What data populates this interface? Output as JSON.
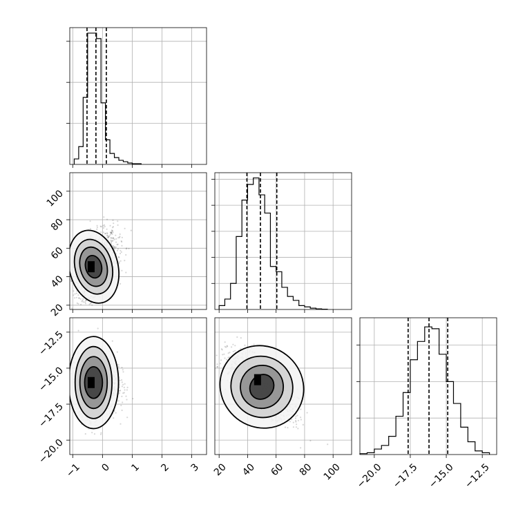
{
  "chart_data": {
    "type": "corner",
    "parameters": [
      {
        "ticks": [
          -1,
          0,
          1,
          2,
          3
        ],
        "tick_labels": [
          "−1",
          "0",
          "1",
          "2",
          "3"
        ],
        "range": [
          -1.1,
          3.5
        ],
        "quantiles": [
          -0.52,
          -0.22,
          0.13
        ],
        "hist": {
          "edges": [
            -0.95,
            -0.8,
            -0.65,
            -0.5,
            -0.35,
            -0.2,
            -0.05,
            0.1,
            0.25,
            0.4,
            0.55,
            0.7,
            0.85,
            1.0,
            1.3
          ],
          "counts": [
            4,
            13,
            49,
            96,
            96,
            92,
            45,
            18,
            8,
            5,
            3,
            2,
            1,
            0.5
          ],
          "ymax": 100,
          "yticks": [
            30,
            60,
            90
          ]
        },
        "mean": -0.3,
        "sd": 0.32
      },
      {
        "ticks": [
          20,
          40,
          60,
          80,
          100
        ],
        "tick_labels": [
          "20",
          "40",
          "60",
          "80",
          "100"
        ],
        "range": [
          17,
          113
        ],
        "quantiles": [
          39.5,
          49,
          60.5
        ],
        "hist": {
          "edges": [
            20,
            24,
            28,
            32,
            36,
            40,
            44,
            48,
            52,
            56,
            60,
            64,
            68,
            72,
            76,
            80,
            84,
            88,
            92,
            96
          ],
          "counts": [
            3,
            8,
            20,
            56,
            84,
            96,
            101,
            88,
            74,
            33,
            29,
            17,
            10,
            7,
            3,
            2,
            1,
            0.5,
            0.2
          ],
          "ymax": 105,
          "yticks": [
            20,
            40,
            60,
            80,
            100
          ]
        },
        "mean": 49,
        "sd": 11
      },
      {
        "ticks": [
          -20,
          -17.5,
          -15,
          -12.5
        ],
        "tick_labels": [
          "−20.0",
          "−17.5",
          "−15.0",
          "−12.5"
        ],
        "range": [
          -21,
          -11.5
        ],
        "quantiles": [
          -17.65,
          -16.2,
          -14.9
        ],
        "hist": {
          "edges": [
            -21,
            -20.5,
            -20,
            -19.5,
            -19,
            -18.5,
            -18,
            -17.5,
            -17,
            -16.5,
            -16,
            -15.5,
            -15,
            -14.5,
            -14,
            -13.5,
            -13,
            -12.5,
            -12
          ],
          "counts": [
            0.5,
            1,
            3,
            5,
            10,
            21,
            34,
            52,
            62,
            70,
            69,
            55,
            40,
            28,
            15,
            7,
            2,
            1
          ],
          "ymax": 75,
          "yticks": [
            20,
            40,
            60
          ]
        },
        "mean": -16.2,
        "sd": 1.1
      }
    ],
    "pairs": [
      {
        "row": 1,
        "col": 0,
        "center": [
          -0.3,
          47
        ],
        "contours": [
          {
            "rx": 0.27,
            "ry": 8,
            "rot": -14
          },
          {
            "rx": 0.45,
            "ry": 14,
            "rot": -14
          },
          {
            "rx": 0.62,
            "ry": 19.5,
            "rot": -14
          },
          {
            "rx": 0.82,
            "ry": 26,
            "rot": -14
          }
        ],
        "peak": [
          -0.38,
          47
        ]
      },
      {
        "row": 2,
        "col": 0,
        "center": [
          -0.3,
          -16
        ],
        "contours": [
          {
            "rx": 0.3,
            "ry": 1.1,
            "rot": 0
          },
          {
            "rx": 0.46,
            "ry": 1.8,
            "rot": 0
          },
          {
            "rx": 0.62,
            "ry": 2.5,
            "rot": 0
          },
          {
            "rx": 0.84,
            "ry": 3.2,
            "rot": 0
          }
        ],
        "peak": [
          -0.38,
          -16
        ]
      },
      {
        "row": 2,
        "col": 1,
        "center": [
          50,
          -16.3
        ],
        "contours": [
          {
            "rx": 8,
            "ry": 0.9,
            "rot": 38
          },
          {
            "rx": 15,
            "ry": 1.5,
            "rot": 38
          },
          {
            "rx": 22,
            "ry": 2.1,
            "rot": 38
          },
          {
            "rx": 30,
            "ry": 2.8,
            "rot": 38
          }
        ],
        "peak": [
          47,
          -15.8
        ]
      }
    ],
    "correlations": [
      {
        "a": 0,
        "b": 1,
        "rho": 0.45
      },
      {
        "a": 0,
        "b": 2,
        "rho": 0.05
      },
      {
        "a": 1,
        "b": 2,
        "rho": -0.72
      }
    ],
    "grid": true,
    "title": "",
    "labels": [
      "",
      "",
      ""
    ]
  }
}
